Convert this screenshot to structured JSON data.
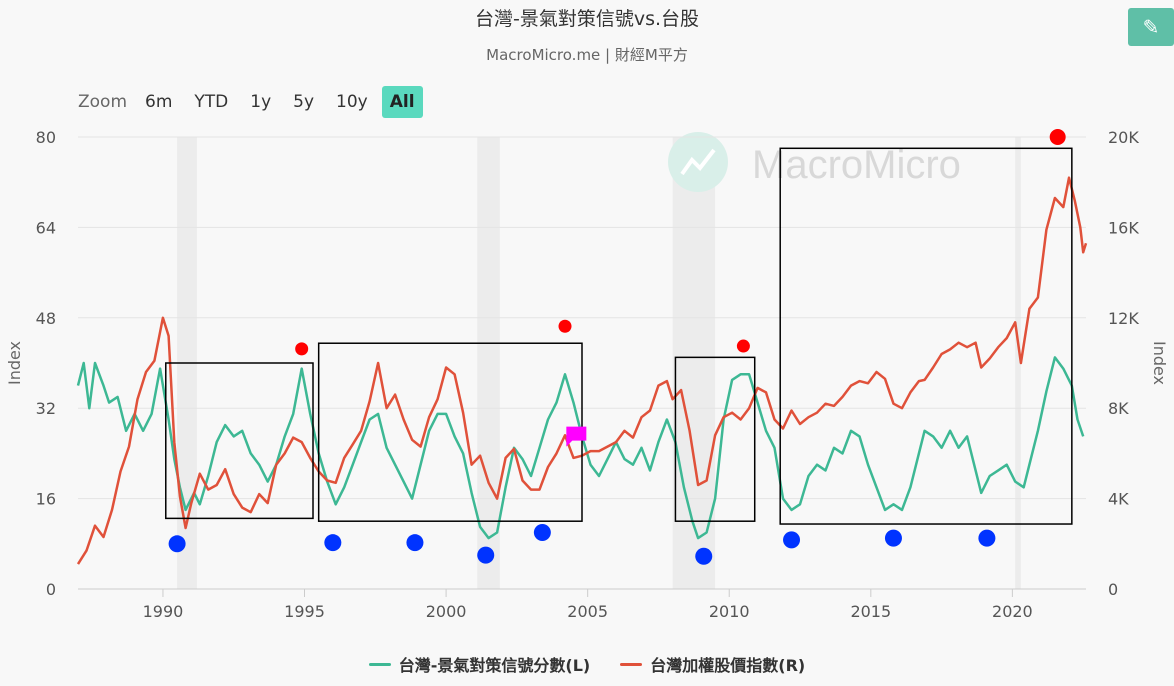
{
  "header": {
    "title": "台灣-景氣對策信號vs.台股",
    "subtitle": "MacroMicro.me | 財經M平方",
    "edit_icon": "pencil-icon"
  },
  "zoom": {
    "label": "Zoom",
    "options": [
      "6m",
      "YTD",
      "1y",
      "5y",
      "10y",
      "All"
    ],
    "selected": "All"
  },
  "watermark": "MacroMicro",
  "colors": {
    "series_left": "#3db894",
    "series_right": "#e0513a",
    "marker_red": "#ff0000",
    "marker_blue": "#0033ff",
    "flag": "#ff00ff",
    "accent": "#5ad9be"
  },
  "chart_data": {
    "type": "line",
    "title": "台灣-景氣對策信號vs.台股",
    "ylabel_left": "Index",
    "ylabel_right": "Index",
    "x_ticks": [
      1990,
      1995,
      2000,
      2005,
      2010,
      2015,
      2020
    ],
    "y_left_ticks": [
      "0",
      "16",
      "32",
      "48",
      "64",
      "80"
    ],
    "y_right_ticks": [
      "0",
      "4K",
      "8K",
      "12K",
      "16K",
      "20K"
    ],
    "ylim_left": [
      0,
      80
    ],
    "ylim_right": [
      0,
      20000
    ],
    "xlim": [
      1987.0,
      2022.6
    ],
    "grid": true,
    "legend": "bottom",
    "recessions": [
      [
        1990.5,
        1991.2
      ],
      [
        2001.1,
        2001.9
      ],
      [
        2008.0,
        2009.5
      ],
      [
        2020.1,
        2020.3
      ]
    ],
    "series": [
      {
        "name": "台灣-景氣對策信號分數(L)",
        "axis": "left",
        "points": [
          [
            1987.0,
            36
          ],
          [
            1987.2,
            40
          ],
          [
            1987.4,
            32
          ],
          [
            1987.6,
            40
          ],
          [
            1987.9,
            36
          ],
          [
            1988.1,
            33
          ],
          [
            1988.4,
            34
          ],
          [
            1988.7,
            28
          ],
          [
            1989.0,
            31
          ],
          [
            1989.3,
            28
          ],
          [
            1989.6,
            31
          ],
          [
            1989.9,
            39
          ],
          [
            1990.2,
            30
          ],
          [
            1990.4,
            23
          ],
          [
            1990.6,
            18
          ],
          [
            1990.8,
            14
          ],
          [
            1991.1,
            17
          ],
          [
            1991.3,
            15
          ],
          [
            1991.6,
            20
          ],
          [
            1991.9,
            26
          ],
          [
            1992.2,
            29
          ],
          [
            1992.5,
            27
          ],
          [
            1992.8,
            28
          ],
          [
            1993.1,
            24
          ],
          [
            1993.4,
            22
          ],
          [
            1993.7,
            19
          ],
          [
            1994.0,
            22
          ],
          [
            1994.3,
            27
          ],
          [
            1994.6,
            31
          ],
          [
            1994.9,
            39
          ],
          [
            1995.2,
            31
          ],
          [
            1995.5,
            24
          ],
          [
            1995.8,
            19
          ],
          [
            1996.1,
            15
          ],
          [
            1996.4,
            18
          ],
          [
            1996.7,
            22
          ],
          [
            1997.0,
            26
          ],
          [
            1997.3,
            30
          ],
          [
            1997.6,
            31
          ],
          [
            1997.9,
            25
          ],
          [
            1998.2,
            22
          ],
          [
            1998.5,
            19
          ],
          [
            1998.8,
            16
          ],
          [
            1999.1,
            22
          ],
          [
            1999.4,
            28
          ],
          [
            1999.7,
            31
          ],
          [
            2000.0,
            31
          ],
          [
            2000.3,
            27
          ],
          [
            2000.6,
            24
          ],
          [
            2000.9,
            17
          ],
          [
            2001.2,
            11
          ],
          [
            2001.5,
            9
          ],
          [
            2001.8,
            10
          ],
          [
            2002.1,
            18
          ],
          [
            2002.4,
            25
          ],
          [
            2002.7,
            23
          ],
          [
            2003.0,
            20
          ],
          [
            2003.3,
            25
          ],
          [
            2003.6,
            30
          ],
          [
            2003.9,
            33
          ],
          [
            2004.2,
            38
          ],
          [
            2004.5,
            33
          ],
          [
            2004.8,
            27
          ],
          [
            2005.1,
            22
          ],
          [
            2005.4,
            20
          ],
          [
            2005.7,
            23
          ],
          [
            2006.0,
            26
          ],
          [
            2006.3,
            23
          ],
          [
            2006.6,
            22
          ],
          [
            2006.9,
            25
          ],
          [
            2007.2,
            21
          ],
          [
            2007.5,
            26
          ],
          [
            2007.8,
            30
          ],
          [
            2008.1,
            26
          ],
          [
            2008.4,
            18
          ],
          [
            2008.7,
            12
          ],
          [
            2008.9,
            9
          ],
          [
            2009.2,
            10
          ],
          [
            2009.5,
            16
          ],
          [
            2009.8,
            30
          ],
          [
            2010.1,
            37
          ],
          [
            2010.4,
            38
          ],
          [
            2010.7,
            38
          ],
          [
            2011.0,
            33
          ],
          [
            2011.3,
            28
          ],
          [
            2011.6,
            25
          ],
          [
            2011.9,
            16
          ],
          [
            2012.2,
            14
          ],
          [
            2012.5,
            15
          ],
          [
            2012.8,
            20
          ],
          [
            2013.1,
            22
          ],
          [
            2013.4,
            21
          ],
          [
            2013.7,
            25
          ],
          [
            2014.0,
            24
          ],
          [
            2014.3,
            28
          ],
          [
            2014.6,
            27
          ],
          [
            2014.9,
            22
          ],
          [
            2015.2,
            18
          ],
          [
            2015.5,
            14
          ],
          [
            2015.8,
            15
          ],
          [
            2016.1,
            14
          ],
          [
            2016.4,
            18
          ],
          [
            2016.7,
            24
          ],
          [
            2016.9,
            28
          ],
          [
            2017.2,
            27
          ],
          [
            2017.5,
            25
          ],
          [
            2017.8,
            28
          ],
          [
            2018.1,
            25
          ],
          [
            2018.4,
            27
          ],
          [
            2018.7,
            21
          ],
          [
            2018.9,
            17
          ],
          [
            2019.2,
            20
          ],
          [
            2019.5,
            21
          ],
          [
            2019.8,
            22
          ],
          [
            2020.1,
            19
          ],
          [
            2020.4,
            18
          ],
          [
            2020.7,
            24
          ],
          [
            2020.9,
            28
          ],
          [
            2021.2,
            35
          ],
          [
            2021.5,
            41
          ],
          [
            2021.8,
            39
          ],
          [
            2022.1,
            36
          ],
          [
            2022.3,
            30
          ],
          [
            2022.5,
            27
          ]
        ]
      },
      {
        "name": "台灣加權股價指數(R)",
        "axis": "right",
        "points": [
          [
            1987.0,
            1100
          ],
          [
            1987.3,
            1700
          ],
          [
            1987.6,
            2800
          ],
          [
            1987.9,
            2300
          ],
          [
            1988.2,
            3500
          ],
          [
            1988.5,
            5200
          ],
          [
            1988.8,
            6300
          ],
          [
            1989.1,
            8400
          ],
          [
            1989.4,
            9600
          ],
          [
            1989.7,
            10100
          ],
          [
            1990.0,
            12000
          ],
          [
            1990.2,
            11200
          ],
          [
            1990.4,
            6500
          ],
          [
            1990.6,
            4100
          ],
          [
            1990.8,
            2700
          ],
          [
            1991.0,
            3800
          ],
          [
            1991.3,
            5100
          ],
          [
            1991.6,
            4400
          ],
          [
            1991.9,
            4600
          ],
          [
            1992.2,
            5300
          ],
          [
            1992.5,
            4200
          ],
          [
            1992.8,
            3600
          ],
          [
            1993.1,
            3400
          ],
          [
            1993.4,
            4200
          ],
          [
            1993.7,
            3800
          ],
          [
            1994.0,
            5500
          ],
          [
            1994.3,
            6000
          ],
          [
            1994.6,
            6700
          ],
          [
            1994.9,
            6500
          ],
          [
            1995.2,
            5800
          ],
          [
            1995.5,
            5200
          ],
          [
            1995.8,
            4800
          ],
          [
            1996.1,
            4700
          ],
          [
            1996.4,
            5800
          ],
          [
            1996.7,
            6400
          ],
          [
            1997.0,
            7000
          ],
          [
            1997.3,
            8300
          ],
          [
            1997.6,
            10000
          ],
          [
            1997.9,
            8000
          ],
          [
            1998.2,
            8600
          ],
          [
            1998.5,
            7500
          ],
          [
            1998.8,
            6600
          ],
          [
            1999.1,
            6300
          ],
          [
            1999.4,
            7600
          ],
          [
            1999.7,
            8400
          ],
          [
            2000.0,
            9800
          ],
          [
            2000.3,
            9500
          ],
          [
            2000.6,
            7800
          ],
          [
            2000.9,
            5500
          ],
          [
            2001.2,
            5900
          ],
          [
            2001.5,
            4700
          ],
          [
            2001.8,
            4000
          ],
          [
            2002.1,
            5800
          ],
          [
            2002.4,
            6200
          ],
          [
            2002.7,
            4800
          ],
          [
            2003.0,
            4400
          ],
          [
            2003.3,
            4400
          ],
          [
            2003.6,
            5400
          ],
          [
            2003.9,
            6000
          ],
          [
            2004.2,
            6800
          ],
          [
            2004.5,
            5800
          ],
          [
            2004.8,
            5900
          ],
          [
            2005.1,
            6100
          ],
          [
            2005.4,
            6100
          ],
          [
            2005.7,
            6300
          ],
          [
            2006.0,
            6500
          ],
          [
            2006.3,
            7000
          ],
          [
            2006.6,
            6700
          ],
          [
            2006.9,
            7600
          ],
          [
            2007.2,
            7900
          ],
          [
            2007.5,
            9000
          ],
          [
            2007.8,
            9200
          ],
          [
            2008.0,
            8400
          ],
          [
            2008.3,
            8800
          ],
          [
            2008.6,
            7000
          ],
          [
            2008.9,
            4600
          ],
          [
            2009.2,
            4800
          ],
          [
            2009.5,
            6800
          ],
          [
            2009.8,
            7600
          ],
          [
            2010.1,
            7800
          ],
          [
            2010.4,
            7500
          ],
          [
            2010.7,
            8000
          ],
          [
            2011.0,
            8900
          ],
          [
            2011.3,
            8700
          ],
          [
            2011.6,
            7500
          ],
          [
            2011.9,
            7100
          ],
          [
            2012.2,
            7900
          ],
          [
            2012.5,
            7300
          ],
          [
            2012.8,
            7600
          ],
          [
            2013.1,
            7800
          ],
          [
            2013.4,
            8200
          ],
          [
            2013.7,
            8100
          ],
          [
            2014.0,
            8500
          ],
          [
            2014.3,
            9000
          ],
          [
            2014.6,
            9200
          ],
          [
            2014.9,
            9100
          ],
          [
            2015.2,
            9600
          ],
          [
            2015.5,
            9300
          ],
          [
            2015.8,
            8200
          ],
          [
            2016.1,
            8000
          ],
          [
            2016.4,
            8700
          ],
          [
            2016.7,
            9200
          ],
          [
            2016.9,
            9250
          ],
          [
            2017.2,
            9800
          ],
          [
            2017.5,
            10400
          ],
          [
            2017.8,
            10600
          ],
          [
            2018.1,
            10900
          ],
          [
            2018.4,
            10700
          ],
          [
            2018.7,
            10900
          ],
          [
            2018.9,
            9800
          ],
          [
            2019.2,
            10200
          ],
          [
            2019.5,
            10700
          ],
          [
            2019.8,
            11100
          ],
          [
            2020.1,
            11800
          ],
          [
            2020.3,
            10000
          ],
          [
            2020.6,
            12400
          ],
          [
            2020.9,
            12900
          ],
          [
            2021.2,
            15900
          ],
          [
            2021.5,
            17300
          ],
          [
            2021.8,
            16900
          ],
          [
            2022.0,
            18200
          ],
          [
            2022.2,
            17200
          ],
          [
            2022.4,
            16000
          ],
          [
            2022.5,
            14900
          ],
          [
            2022.6,
            15300
          ]
        ]
      }
    ],
    "boxes": [
      {
        "x0": 1990.1,
        "x1": 1995.3,
        "y0": 12.5,
        "y1": 40.0
      },
      {
        "x0": 1995.5,
        "x1": 2004.8,
        "y0": 12.0,
        "y1": 43.5
      },
      {
        "x0": 2008.1,
        "x1": 2010.9,
        "y0": 12.0,
        "y1": 41.0
      },
      {
        "x0": 2011.8,
        "x1": 2022.1,
        "y0": 11.5,
        "y1": 78.0
      }
    ],
    "peak_markers": [
      {
        "x": 1994.9,
        "y": 42.5
      },
      {
        "x": 2004.2,
        "y": 46.5
      },
      {
        "x": 2010.5,
        "y": 43.0
      },
      {
        "x": 2021.6,
        "y": 80.0
      }
    ],
    "trough_markers": [
      {
        "x": 1990.5,
        "y": 8.0
      },
      {
        "x": 1996.0,
        "y": 8.2
      },
      {
        "x": 1998.9,
        "y": 8.2
      },
      {
        "x": 2001.4,
        "y": 6.0
      },
      {
        "x": 2003.4,
        "y": 10.0
      },
      {
        "x": 2009.1,
        "y": 5.8
      },
      {
        "x": 2012.2,
        "y": 8.7
      },
      {
        "x": 2015.8,
        "y": 9.0
      },
      {
        "x": 2019.1,
        "y": 9.0
      }
    ],
    "flag_marker": {
      "x": 2004.6,
      "y": 27.5
    }
  }
}
